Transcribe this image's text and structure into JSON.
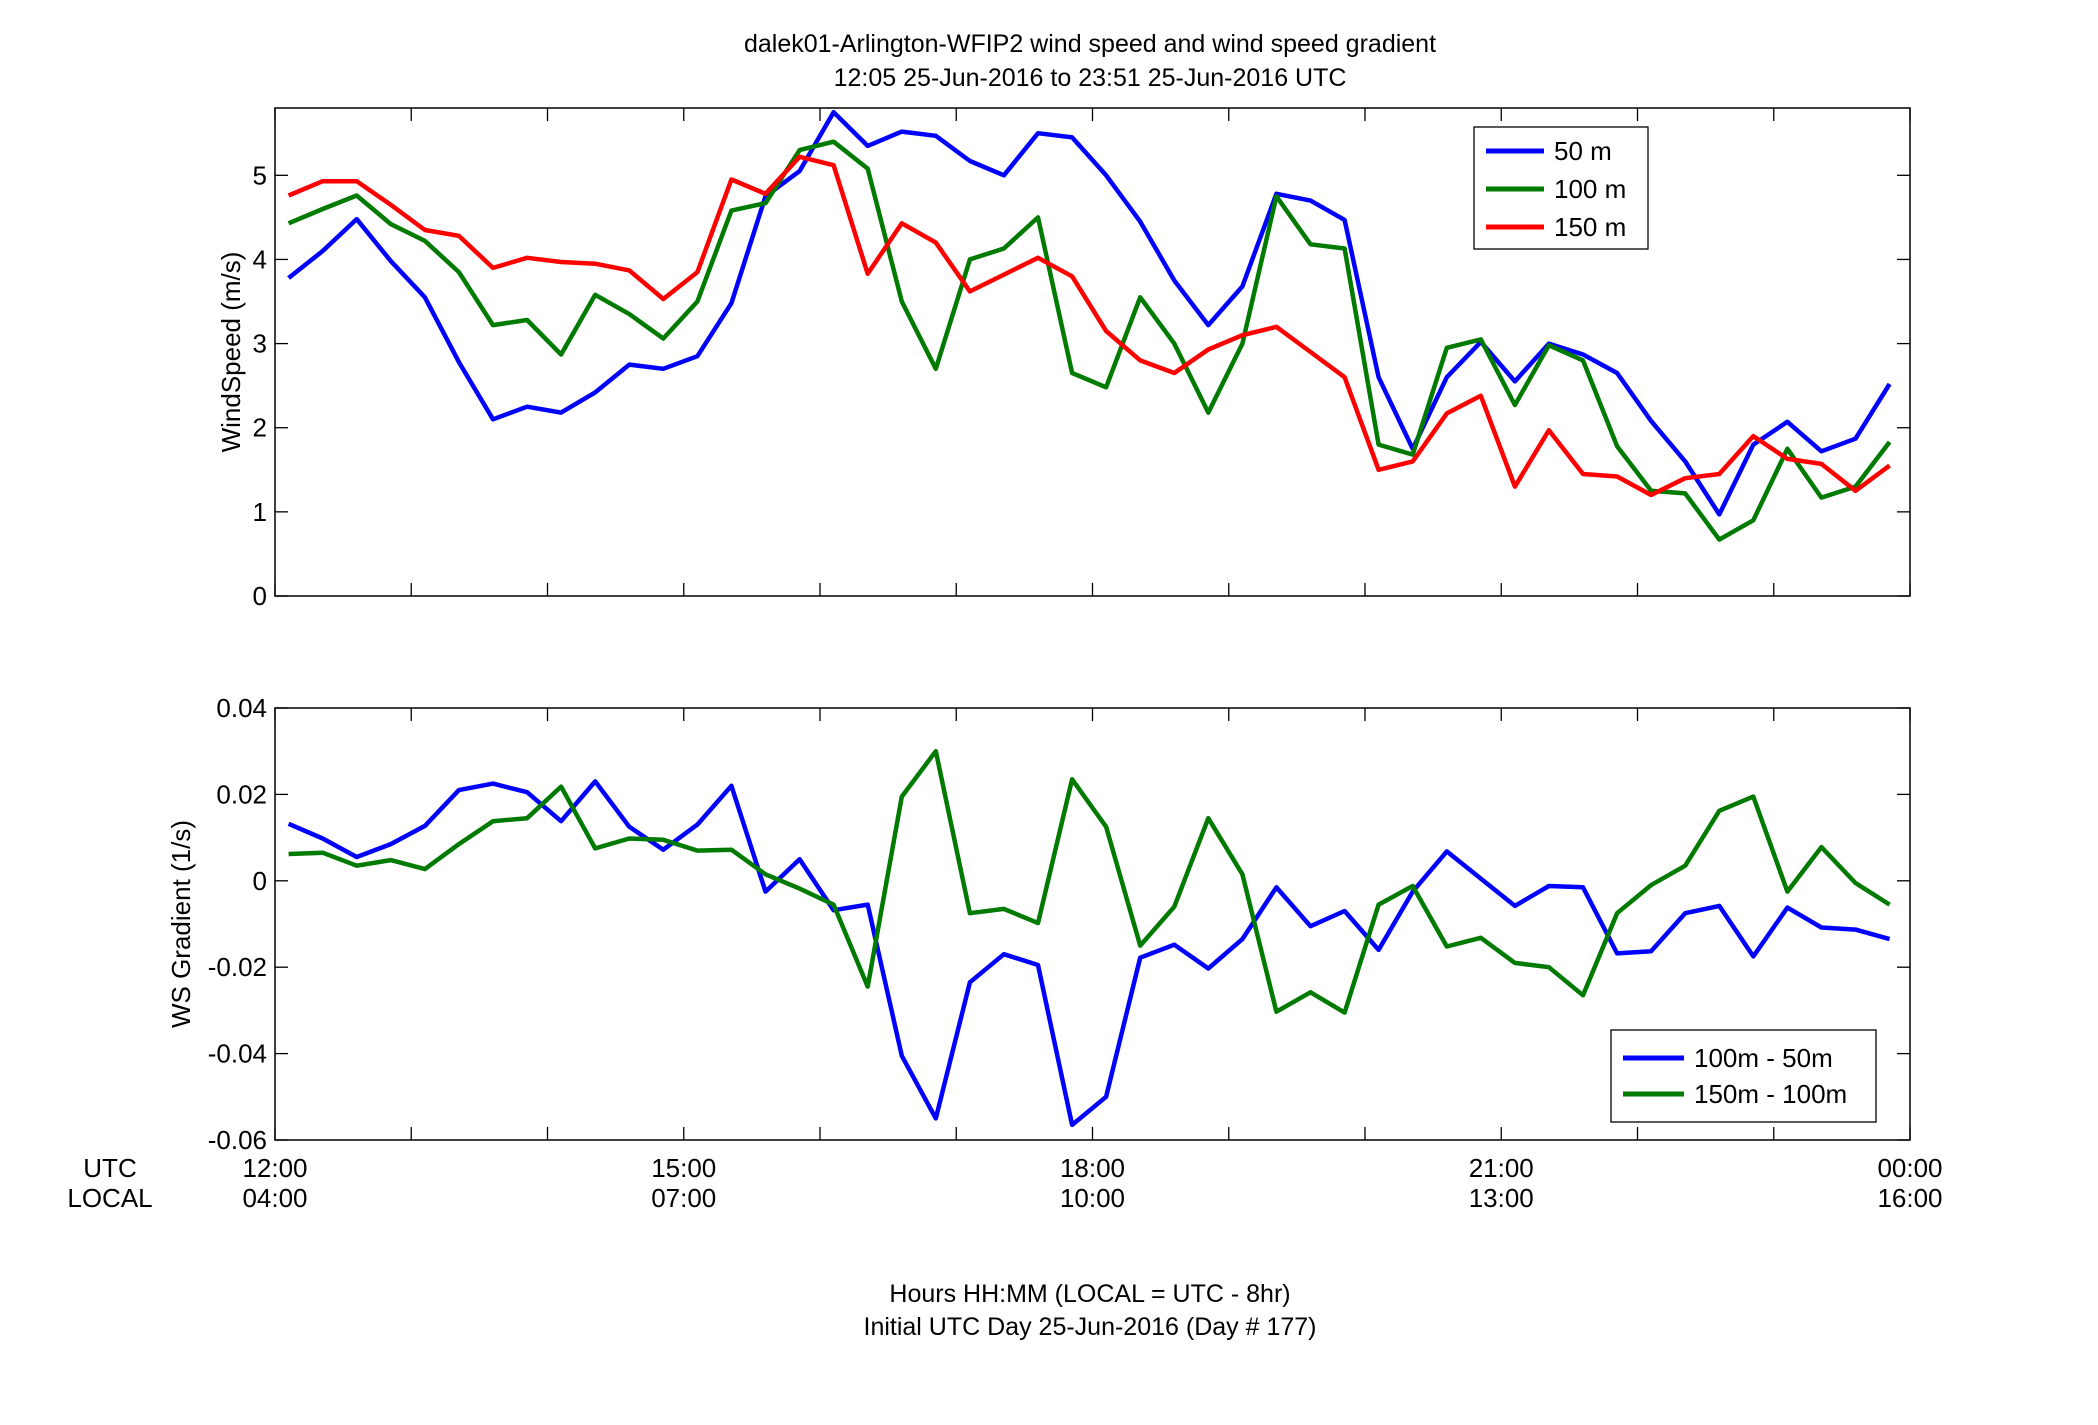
{
  "figure": {
    "title_line1": "dalek01-Arlington-WFIP2  wind speed and wind speed gradient",
    "title_line2": "12:05 25-Jun-2016 to 23:51 25-Jun-2016  UTC",
    "xlabel_line1": "Hours HH:MM  (LOCAL = UTC - 8hr)",
    "xlabel_line2": "Initial UTC Day 25-Jun-2016 (Day # 177)",
    "row_label_utc": "UTC",
    "row_label_local": "LOCAL"
  },
  "chart_data": [
    {
      "type": "line",
      "title": "",
      "ylabel": "WindSpeed (m/s)",
      "xlim": [
        12.0,
        24.0
      ],
      "ylim": [
        0,
        5.8
      ],
      "yticks": [
        0,
        1,
        2,
        3,
        4,
        5
      ],
      "ytick_labels": [
        "0",
        "1",
        "2",
        "3",
        "4",
        "5"
      ],
      "grid": false,
      "legend": "top-right",
      "x": [
        12.1,
        12.35,
        12.6,
        12.85,
        13.1,
        13.35,
        13.6,
        13.85,
        14.1,
        14.35,
        14.6,
        14.85,
        15.1,
        15.35,
        15.6,
        15.85,
        16.1,
        16.35,
        16.6,
        16.85,
        17.1,
        17.35,
        17.6,
        17.85,
        18.1,
        18.35,
        18.6,
        18.85,
        19.1,
        19.35,
        19.6,
        19.85,
        20.1,
        20.35,
        20.6,
        20.85,
        21.1,
        21.35,
        21.6,
        21.85,
        22.1,
        22.35,
        22.6,
        22.85,
        23.1,
        23.35,
        23.6,
        23.85
      ],
      "series": [
        {
          "name": "50 m",
          "color": "#0000ff",
          "values": [
            3.78,
            4.1,
            4.48,
            3.98,
            3.55,
            2.78,
            2.1,
            2.25,
            2.18,
            2.42,
            2.75,
            2.7,
            2.85,
            3.48,
            4.75,
            5.05,
            5.75,
            5.35,
            5.52,
            5.47,
            5.17,
            5.0,
            5.5,
            5.45,
            5.0,
            4.45,
            3.75,
            3.22,
            3.68,
            4.78,
            4.7,
            4.47,
            2.6,
            1.75,
            2.6,
            3.02,
            2.55,
            3.0,
            2.87,
            2.65,
            2.08,
            1.6,
            0.97,
            1.8,
            2.07,
            1.72,
            1.87,
            2.52
          ]
        },
        {
          "name": "100 m",
          "color": "#007a00",
          "values": [
            4.43,
            4.6,
            4.76,
            4.42,
            4.22,
            3.85,
            3.22,
            3.28,
            2.87,
            3.58,
            3.35,
            3.06,
            3.5,
            4.58,
            4.67,
            5.3,
            5.4,
            5.08,
            3.5,
            2.7,
            4.0,
            4.13,
            4.5,
            2.65,
            2.48,
            3.55,
            3.0,
            2.18,
            3.0,
            4.75,
            4.18,
            4.13,
            1.8,
            1.68,
            2.95,
            3.05,
            2.27,
            2.98,
            2.8,
            1.78,
            1.25,
            1.22,
            0.67,
            0.9,
            1.75,
            1.17,
            1.3,
            1.83
          ]
        },
        {
          "name": "150 m",
          "color": "#ff0000",
          "values": [
            4.76,
            4.93,
            4.93,
            4.65,
            4.35,
            4.28,
            3.9,
            4.02,
            3.97,
            3.95,
            3.87,
            3.53,
            3.85,
            4.95,
            4.78,
            5.22,
            5.12,
            3.83,
            4.43,
            4.2,
            3.62,
            3.82,
            4.02,
            3.8,
            3.15,
            2.8,
            2.65,
            2.93,
            3.1,
            3.2,
            2.9,
            2.6,
            1.5,
            1.6,
            2.17,
            2.38,
            1.3,
            1.97,
            1.45,
            1.42,
            1.2,
            1.4,
            1.45,
            1.9,
            1.63,
            1.57,
            1.25,
            1.55
          ]
        }
      ]
    },
    {
      "type": "line",
      "title": "",
      "ylabel": "WS Gradient (1/s)",
      "xlim": [
        12.0,
        24.0
      ],
      "ylim": [
        -0.06,
        0.04
      ],
      "yticks": [
        -0.06,
        -0.04,
        -0.02,
        0,
        0.02,
        0.04
      ],
      "ytick_labels": [
        "-0.06",
        "-0.04",
        "-0.02",
        "0",
        "0.02",
        "0.04"
      ],
      "xticks": [
        12,
        15,
        18,
        21,
        24
      ],
      "xtick_labels_utc": [
        "12:00",
        "15:00",
        "18:00",
        "21:00",
        "00:00"
      ],
      "xtick_labels_local": [
        "04:00",
        "07:00",
        "10:00",
        "13:00",
        "16:00"
      ],
      "grid": false,
      "legend": "bottom-right",
      "x": [
        12.1,
        12.35,
        12.6,
        12.85,
        13.1,
        13.35,
        13.6,
        13.85,
        14.1,
        14.35,
        14.6,
        14.85,
        15.1,
        15.35,
        15.6,
        15.85,
        16.1,
        16.35,
        16.6,
        16.85,
        17.1,
        17.35,
        17.6,
        17.85,
        18.1,
        18.35,
        18.6,
        18.85,
        19.1,
        19.35,
        19.6,
        19.85,
        20.1,
        20.35,
        20.6,
        20.85,
        21.1,
        21.35,
        21.6,
        21.85,
        22.1,
        22.35,
        22.6,
        22.85,
        23.1,
        23.35,
        23.6,
        23.85
      ],
      "series": [
        {
          "name": "100m - 50m",
          "color": "#0000ff",
          "values": [
            0.0132,
            0.0098,
            0.0055,
            0.0085,
            0.0127,
            0.021,
            0.0225,
            0.0205,
            0.0138,
            0.023,
            0.0125,
            0.0072,
            0.013,
            0.022,
            -0.0025,
            0.005,
            -0.0068,
            -0.0055,
            -0.0405,
            -0.055,
            -0.0235,
            -0.017,
            -0.0195,
            -0.0565,
            -0.05,
            -0.0178,
            -0.0148,
            -0.0203,
            -0.0135,
            -0.0015,
            -0.0105,
            -0.007,
            -0.016,
            -0.0025,
            0.0068,
            0.0005,
            -0.0058,
            -0.0012,
            -0.0015,
            -0.0168,
            -0.0163,
            -0.0075,
            -0.0058,
            -0.0175,
            -0.0062,
            -0.0108,
            -0.0113,
            -0.0135
          ]
        },
        {
          "name": "150m - 100m",
          "color": "#007a00",
          "values": [
            0.0062,
            0.0065,
            0.0035,
            0.0048,
            0.0027,
            0.0085,
            0.0138,
            0.0145,
            0.0218,
            0.0075,
            0.0098,
            0.0095,
            0.007,
            0.0072,
            0.0015,
            -0.0018,
            -0.0055,
            -0.0245,
            0.0195,
            0.03,
            -0.0075,
            -0.0065,
            -0.0098,
            0.0235,
            0.0125,
            -0.015,
            -0.006,
            0.0145,
            0.0015,
            -0.0303,
            -0.0258,
            -0.0305,
            -0.0055,
            -0.0012,
            -0.0152,
            -0.0132,
            -0.019,
            -0.02,
            -0.0265,
            -0.0075,
            -0.001,
            0.0035,
            0.0162,
            0.0195,
            -0.0025,
            0.0078,
            -0.0005,
            -0.0055
          ]
        }
      ]
    }
  ]
}
